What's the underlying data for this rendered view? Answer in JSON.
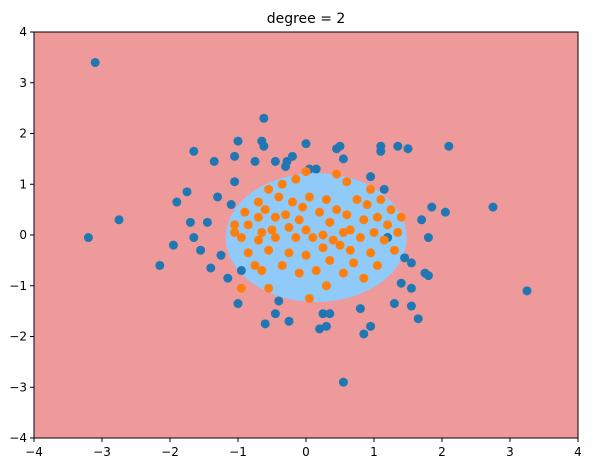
{
  "chart_data": {
    "type": "scatter",
    "title": "degree = 2",
    "xlabel": "",
    "ylabel": "",
    "xlim": [
      -4,
      4
    ],
    "ylim": [
      -4,
      4
    ],
    "xticks": [
      -4,
      -3,
      -2,
      -1,
      0,
      1,
      2,
      3,
      4
    ],
    "yticks": [
      -4,
      -3,
      -2,
      -1,
      0,
      1,
      2,
      3,
      4
    ],
    "grid": false,
    "background_color": "#ef9a9a",
    "decision_region": {
      "shape": "ellipse",
      "center": [
        0.15,
        -0.05
      ],
      "radius_x": 1.33,
      "radius_y": 1.27,
      "color": "#90caf9"
    },
    "series": [
      {
        "color": "#1f77b4",
        "points": [
          [
            -3.1,
            3.4
          ],
          [
            -3.2,
            -0.05
          ],
          [
            -2.75,
            0.3
          ],
          [
            -2.15,
            -0.6
          ],
          [
            -1.95,
            -0.2
          ],
          [
            -1.9,
            0.65
          ],
          [
            -1.75,
            0.85
          ],
          [
            -1.7,
            0.25
          ],
          [
            -1.65,
            -0.05
          ],
          [
            -1.65,
            1.65
          ],
          [
            -1.55,
            -0.3
          ],
          [
            -1.45,
            0.25
          ],
          [
            -1.4,
            -0.65
          ],
          [
            -1.35,
            1.45
          ],
          [
            -1.3,
            0.75
          ],
          [
            -1.25,
            -0.4
          ],
          [
            -1.15,
            -0.85
          ],
          [
            -1.1,
            0.6
          ],
          [
            -1.05,
            1.55
          ],
          [
            -1.05,
            1.05
          ],
          [
            -1.0,
            1.85
          ],
          [
            -1.0,
            -1.35
          ],
          [
            -0.95,
            -0.7
          ],
          [
            -0.75,
            1.45
          ],
          [
            -0.65,
            1.85
          ],
          [
            -0.62,
            1.75
          ],
          [
            -0.62,
            2.3
          ],
          [
            -0.6,
            -1.75
          ],
          [
            -0.45,
            1.45
          ],
          [
            -0.45,
            -1.55
          ],
          [
            -0.4,
            -1.3
          ],
          [
            -0.3,
            1.35
          ],
          [
            -0.28,
            1.45
          ],
          [
            -0.25,
            -1.7
          ],
          [
            -0.2,
            1.55
          ],
          [
            0.0,
            1.8
          ],
          [
            0.05,
            1.3
          ],
          [
            0.15,
            1.3
          ],
          [
            0.2,
            -1.85
          ],
          [
            0.25,
            -1.55
          ],
          [
            0.3,
            -1.8
          ],
          [
            0.35,
            -1.55
          ],
          [
            0.45,
            1.7
          ],
          [
            0.5,
            1.75
          ],
          [
            0.55,
            -2.9
          ],
          [
            0.55,
            1.5
          ],
          [
            0.8,
            -1.45
          ],
          [
            0.85,
            -1.95
          ],
          [
            0.95,
            -1.8
          ],
          [
            0.95,
            1.15
          ],
          [
            1.1,
            1.75
          ],
          [
            1.1,
            1.65
          ],
          [
            1.15,
            0.9
          ],
          [
            1.2,
            -0.05
          ],
          [
            1.3,
            -1.35
          ],
          [
            1.35,
            1.75
          ],
          [
            1.4,
            -0.95
          ],
          [
            1.45,
            -0.45
          ],
          [
            1.5,
            1.7
          ],
          [
            1.55,
            -0.55
          ],
          [
            1.55,
            -1.05
          ],
          [
            1.55,
            -1.4
          ],
          [
            1.65,
            -1.65
          ],
          [
            1.7,
            0.3
          ],
          [
            1.75,
            -0.75
          ],
          [
            1.8,
            -0.8
          ],
          [
            1.8,
            -0.05
          ],
          [
            1.85,
            0.55
          ],
          [
            2.05,
            0.45
          ],
          [
            2.1,
            1.75
          ],
          [
            2.75,
            0.55
          ],
          [
            3.25,
            -1.1
          ]
        ]
      },
      {
        "color": "#ff7f0e",
        "points": [
          [
            -1.05,
            0.05
          ],
          [
            -1.05,
            0.2
          ],
          [
            -0.95,
            -0.05
          ],
          [
            -0.9,
            0.45
          ],
          [
            -0.85,
            -0.35
          ],
          [
            -0.85,
            0.2
          ],
          [
            -0.75,
            -0.6
          ],
          [
            -0.7,
            0.65
          ],
          [
            -0.7,
            0.35
          ],
          [
            -0.7,
            -0.1
          ],
          [
            -0.65,
            0.05
          ],
          [
            -0.65,
            -0.7
          ],
          [
            -0.6,
            0.5
          ],
          [
            -0.55,
            0.9
          ],
          [
            -0.55,
            -0.3
          ],
          [
            -0.5,
            0.1
          ],
          [
            -0.45,
            -0.05
          ],
          [
            -0.45,
            0.35
          ],
          [
            -0.4,
            0.75
          ],
          [
            -0.35,
            -0.6
          ],
          [
            -0.35,
            1.0
          ],
          [
            -0.3,
            0.4
          ],
          [
            -0.25,
            0.15
          ],
          [
            -0.25,
            -0.35
          ],
          [
            -0.2,
            0.65
          ],
          [
            -0.15,
            -0.05
          ],
          [
            -0.1,
            0.3
          ],
          [
            -0.1,
            -0.75
          ],
          [
            -0.05,
            0.55
          ],
          [
            0.0,
            0.1
          ],
          [
            0.0,
            -0.4
          ],
          [
            0.0,
            1.25
          ],
          [
            0.05,
            0.75
          ],
          [
            0.1,
            -0.05
          ],
          [
            0.15,
            -0.7
          ],
          [
            0.2,
            0.45
          ],
          [
            0.25,
            0.0
          ],
          [
            0.25,
            -0.25
          ],
          [
            0.3,
            0.7
          ],
          [
            0.3,
            -1.0
          ],
          [
            0.35,
            0.25
          ],
          [
            0.35,
            -0.5
          ],
          [
            0.4,
            -0.1
          ],
          [
            0.45,
            1.2
          ],
          [
            0.45,
            0.5
          ],
          [
            0.5,
            -0.2
          ],
          [
            0.55,
            0.05
          ],
          [
            0.55,
            -0.75
          ],
          [
            0.6,
            0.4
          ],
          [
            0.65,
            -0.3
          ],
          [
            0.65,
            0.1
          ],
          [
            0.7,
            -0.55
          ],
          [
            0.75,
            0.7
          ],
          [
            0.8,
            -0.05
          ],
          [
            0.85,
            0.3
          ],
          [
            0.85,
            -0.85
          ],
          [
            0.9,
            0.6
          ],
          [
            0.95,
            -0.35
          ],
          [
            1.0,
            0.05
          ],
          [
            1.05,
            -0.6
          ],
          [
            1.05,
            0.35
          ],
          [
            1.1,
            0.7
          ],
          [
            1.15,
            -0.1
          ],
          [
            1.2,
            0.2
          ],
          [
            1.25,
            0.5
          ],
          [
            1.3,
            -0.3
          ],
          [
            1.35,
            0.05
          ],
          [
            1.4,
            0.35
          ],
          [
            -0.95,
            -1.05
          ],
          [
            -0.55,
            -1.05
          ],
          [
            0.05,
            -1.25
          ],
          [
            0.6,
            1.05
          ],
          [
            -0.15,
            1.1
          ],
          [
            0.95,
            0.9
          ]
        ]
      }
    ]
  }
}
